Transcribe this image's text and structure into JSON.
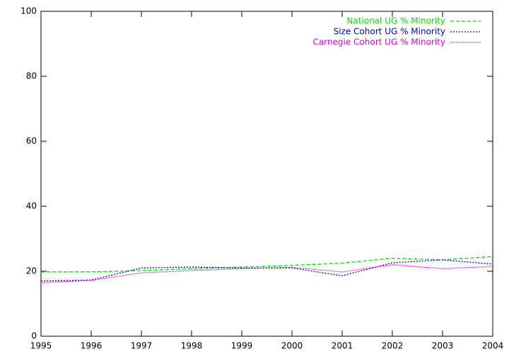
{
  "chart_data": {
    "type": "line",
    "x": [
      1995,
      1996,
      1997,
      1998,
      1999,
      2000,
      2001,
      2002,
      2003,
      2004
    ],
    "series": [
      {
        "name": "National UG % Minority",
        "color": "#00dd00",
        "dash": "5,3",
        "values": [
          19.8,
          19.8,
          20.2,
          20.8,
          21.3,
          21.8,
          22.5,
          24.0,
          23.5,
          24.5
        ]
      },
      {
        "name": "Size Cohort UG % Minority",
        "color": "#0000cc",
        "dash": "2,2",
        "values": [
          17.0,
          17.3,
          21.0,
          21.3,
          21.0,
          21.0,
          18.6,
          22.6,
          23.5,
          22.2
        ]
      },
      {
        "name": "Carnegie Cohort UG % Minority",
        "color": "#dd00dd",
        "dash": "1,1",
        "values": [
          16.5,
          17.2,
          19.5,
          20.2,
          20.8,
          21.2,
          19.8,
          22.0,
          20.8,
          21.5
        ]
      }
    ],
    "xlim": [
      1995,
      2004
    ],
    "xticks": [
      1995,
      1996,
      1997,
      1998,
      1999,
      2000,
      2001,
      2002,
      2003,
      2004
    ],
    "ylim": [
      0,
      100
    ],
    "yticks": [
      0,
      20,
      40,
      60,
      80,
      100
    ],
    "legend": "top-right"
  }
}
